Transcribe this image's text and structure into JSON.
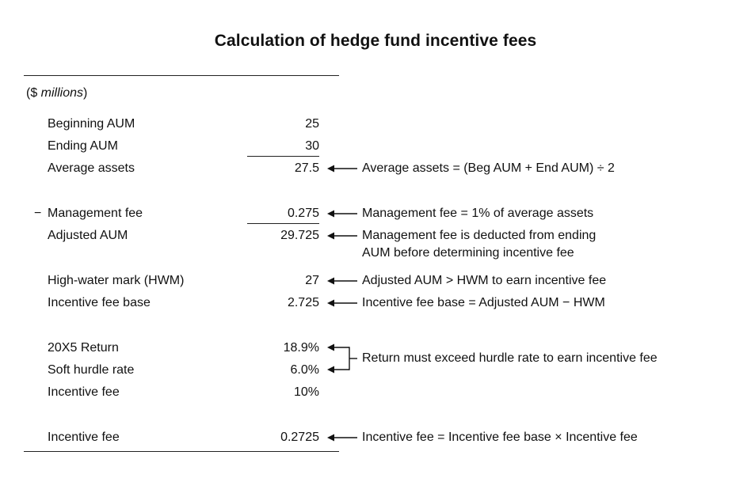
{
  "title": "Calculation of hedge fund incentive fees",
  "units": {
    "open": "($ ",
    "unit": "millions",
    "close": ")"
  },
  "rows": [
    {
      "label": "Beginning AUM",
      "value": "25"
    },
    {
      "label": "Ending AUM",
      "value": "30"
    },
    {
      "label": "Average assets",
      "value": "27.5"
    },
    {
      "prefix": "−",
      "label": "Management fee",
      "value": "0.275"
    },
    {
      "label": "Adjusted AUM",
      "value": "29.725"
    },
    {
      "label": "High-water mark (HWM)",
      "value": "27"
    },
    {
      "label": "Incentive fee base",
      "value": "2.725"
    },
    {
      "label": "20X5 Return",
      "value": "18.9%"
    },
    {
      "label": "Soft hurdle rate",
      "value": "6.0%"
    },
    {
      "label": "Incentive fee",
      "value": "10%"
    },
    {
      "label": "Incentive fee",
      "value": "0.2725"
    }
  ],
  "notes": {
    "average_assets": "Average assets = (Beg AUM + End AUM) ÷ 2",
    "management_fee": "Management fee = 1% of average assets",
    "adjusted_aum_line1": "Management fee is deducted from ending",
    "adjusted_aum_line2": "AUM before determining incentive fee",
    "hwm": "Adjusted AUM > HWM to earn incentive fee",
    "fee_base": "Incentive fee base = Adjusted AUM − HWM",
    "hurdle": "Return must exceed hurdle rate to earn incentive fee",
    "incentive_fee": "Incentive fee = Incentive fee base × Incentive fee"
  },
  "arrow_icon": "left-arrow-icon",
  "bracket_icon": "bracket-icon"
}
